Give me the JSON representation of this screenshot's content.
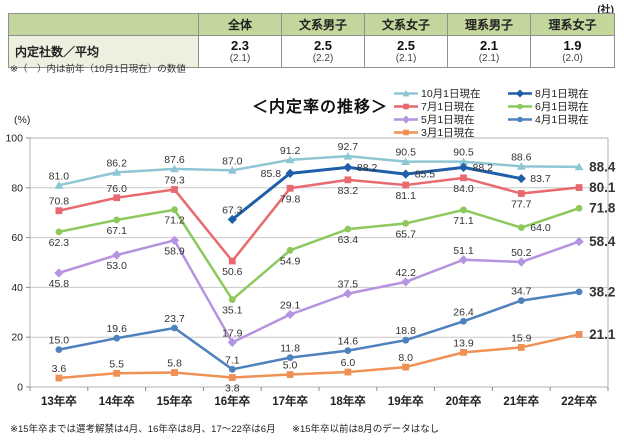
{
  "table": {
    "unit": "(社)",
    "columns": [
      "全体",
      "文系男子",
      "文系女子",
      "理系男子",
      "理系女子"
    ],
    "row_label": "内定社数／平均",
    "values": [
      {
        "current": "2.3",
        "previous": "(2.1)"
      },
      {
        "current": "2.5",
        "previous": "(2.2)"
      },
      {
        "current": "2.5",
        "previous": "(2.1)"
      },
      {
        "current": "2.1",
        "previous": "(2.1)"
      },
      {
        "current": "1.9",
        "previous": "(2.0)"
      }
    ],
    "footnote": "※（　）内は前年（10月1日現在）の数値"
  },
  "chart": {
    "title": "＜内定率の推移＞",
    "y_unit": "(%)"
  },
  "chart_data": {
    "type": "line",
    "title": "内定率の推移",
    "ylabel": "%",
    "ylim": [
      0,
      100
    ],
    "yticks": [
      0,
      20,
      40,
      60,
      80,
      100
    ],
    "grid": true,
    "legend_position": "top-right",
    "categories": [
      "13年卒",
      "14年卒",
      "15年卒",
      "16年卒",
      "17年卒",
      "18年卒",
      "19年卒",
      "20年卒",
      "21年卒",
      "22年卒"
    ],
    "series": [
      {
        "name": "10月1日現在",
        "color": "#8fc6d4",
        "marker": "triangle",
        "width": 2.5,
        "values": [
          81.0,
          86.2,
          87.6,
          87.0,
          91.2,
          92.7,
          90.5,
          90.5,
          88.6,
          88.4
        ],
        "label_pos": [
          "a",
          "a",
          "a",
          "a",
          "a",
          "a",
          "a",
          "a",
          "a",
          "e"
        ]
      },
      {
        "name": "7月1日現在",
        "color": "#e8696f",
        "marker": "square",
        "width": 2.5,
        "values": [
          70.8,
          76.0,
          79.3,
          50.6,
          79.8,
          83.2,
          81.1,
          84.0,
          77.7,
          80.1
        ],
        "label_pos": [
          "a",
          "a",
          "a",
          "b",
          "b",
          "b",
          "b",
          "b",
          "b",
          "e"
        ]
      },
      {
        "name": "6月1日現在",
        "color": "#8cc85c",
        "marker": "circle",
        "width": 2.5,
        "values": [
          62.3,
          67.1,
          71.2,
          35.1,
          54.9,
          63.4,
          65.7,
          71.1,
          64.0,
          71.8
        ],
        "label_pos": [
          "b",
          "b",
          "b",
          "b",
          "b",
          "b",
          "b",
          "b",
          "r",
          "e"
        ]
      },
      {
        "name": "5月1日現在",
        "color": "#b493df",
        "marker": "diamond",
        "width": 2.5,
        "values": [
          45.8,
          53.0,
          58.9,
          17.9,
          29.1,
          37.5,
          42.2,
          51.1,
          50.2,
          58.4
        ],
        "label_pos": [
          "b",
          "b",
          "b",
          "a",
          "a",
          "a",
          "a",
          "a",
          "a",
          "e"
        ]
      },
      {
        "name": "4月1日現在",
        "color": "#4f81bd",
        "marker": "circle",
        "width": 2.5,
        "values": [
          15.0,
          19.6,
          23.7,
          7.1,
          11.8,
          14.6,
          18.8,
          26.4,
          34.7,
          38.2
        ],
        "label_pos": [
          "a",
          "a",
          "a",
          "a",
          "a",
          "a",
          "a",
          "a",
          "a",
          "e"
        ]
      },
      {
        "name": "3月1日現在",
        "color": "#ef9154",
        "marker": "square",
        "width": 2.5,
        "values": [
          3.6,
          5.5,
          5.8,
          3.8,
          5.0,
          6.0,
          8.0,
          13.9,
          15.9,
          21.1
        ],
        "label_pos": [
          "a",
          "a",
          "a",
          "b",
          "a",
          "a",
          "a",
          "a",
          "a",
          "e"
        ]
      },
      {
        "name": "8月1日現在",
        "color": "#1f5ea8",
        "marker": "diamond",
        "width": 3,
        "values": [
          null,
          null,
          null,
          67.3,
          85.8,
          88.2,
          85.5,
          88.2,
          83.7,
          null
        ],
        "label_pos": [
          null,
          null,
          null,
          "a",
          "l",
          "r",
          "r",
          "r",
          "r",
          null
        ]
      }
    ],
    "legend_cols": [
      [
        0,
        1,
        3,
        5
      ],
      [
        6,
        2,
        4
      ]
    ]
  },
  "footnotes": {
    "note1": "※15年卒までは選考解禁は4月、16年卒は8月、17～22卒は6月",
    "note2": "※15年卒以前は8月のデータはなし"
  }
}
